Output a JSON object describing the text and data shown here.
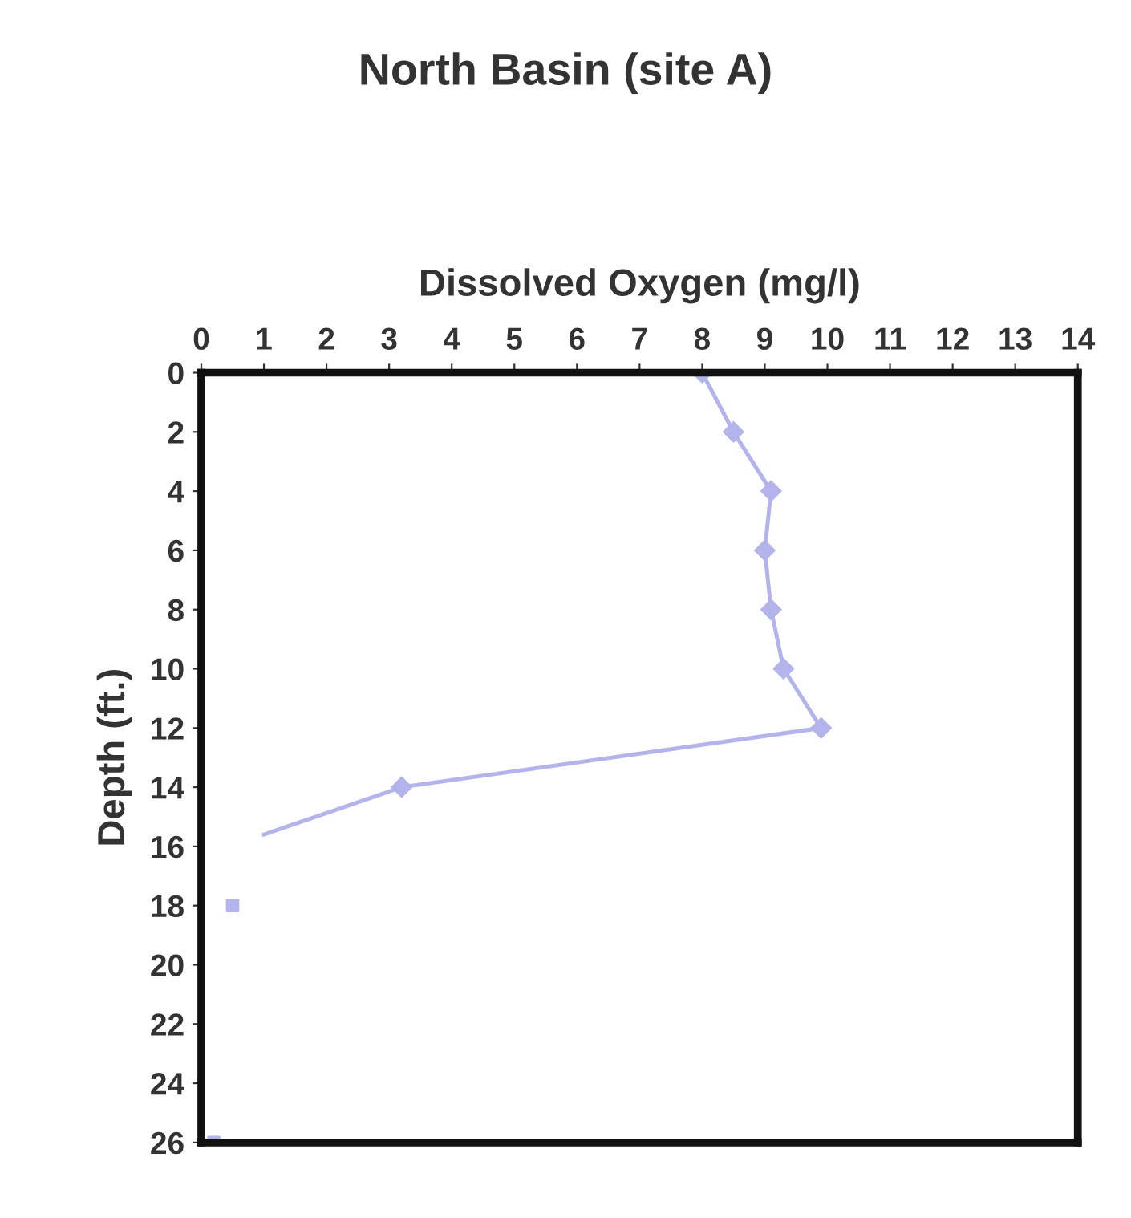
{
  "chart_data": {
    "type": "line",
    "title": "North Basin (site A)",
    "xlabel": "Dissolved Oxygen (mg/l)",
    "ylabel": "Depth (ft.)",
    "xlim": [
      0,
      14
    ],
    "xticks": [
      0,
      1,
      2,
      3,
      4,
      5,
      6,
      7,
      8,
      9,
      10,
      11,
      12,
      13,
      14
    ],
    "ylim": [
      26,
      0
    ],
    "yticks": [
      0,
      2,
      4,
      6,
      8,
      10,
      12,
      14,
      16,
      18,
      20,
      22,
      24,
      26
    ],
    "grid": false,
    "legend": false,
    "series": [
      {
        "color": "#b4b4ec",
        "marker": "diamond",
        "x": [
          8.0,
          8.5,
          9.1,
          9.0,
          9.1,
          9.3,
          9.9,
          3.2
        ],
        "values": [
          0,
          2,
          4,
          6,
          8,
          10,
          12,
          14
        ]
      },
      {
        "type": "line",
        "color": "#b4b4ec",
        "marker": "none",
        "x": [
          3.2,
          1.0
        ],
        "values": [
          14,
          15.6
        ]
      },
      {
        "type": "scatter",
        "color": "#b4b4ec",
        "marker": "square",
        "x": [
          0.5,
          0.2
        ],
        "values": [
          18,
          26
        ]
      }
    ]
  }
}
